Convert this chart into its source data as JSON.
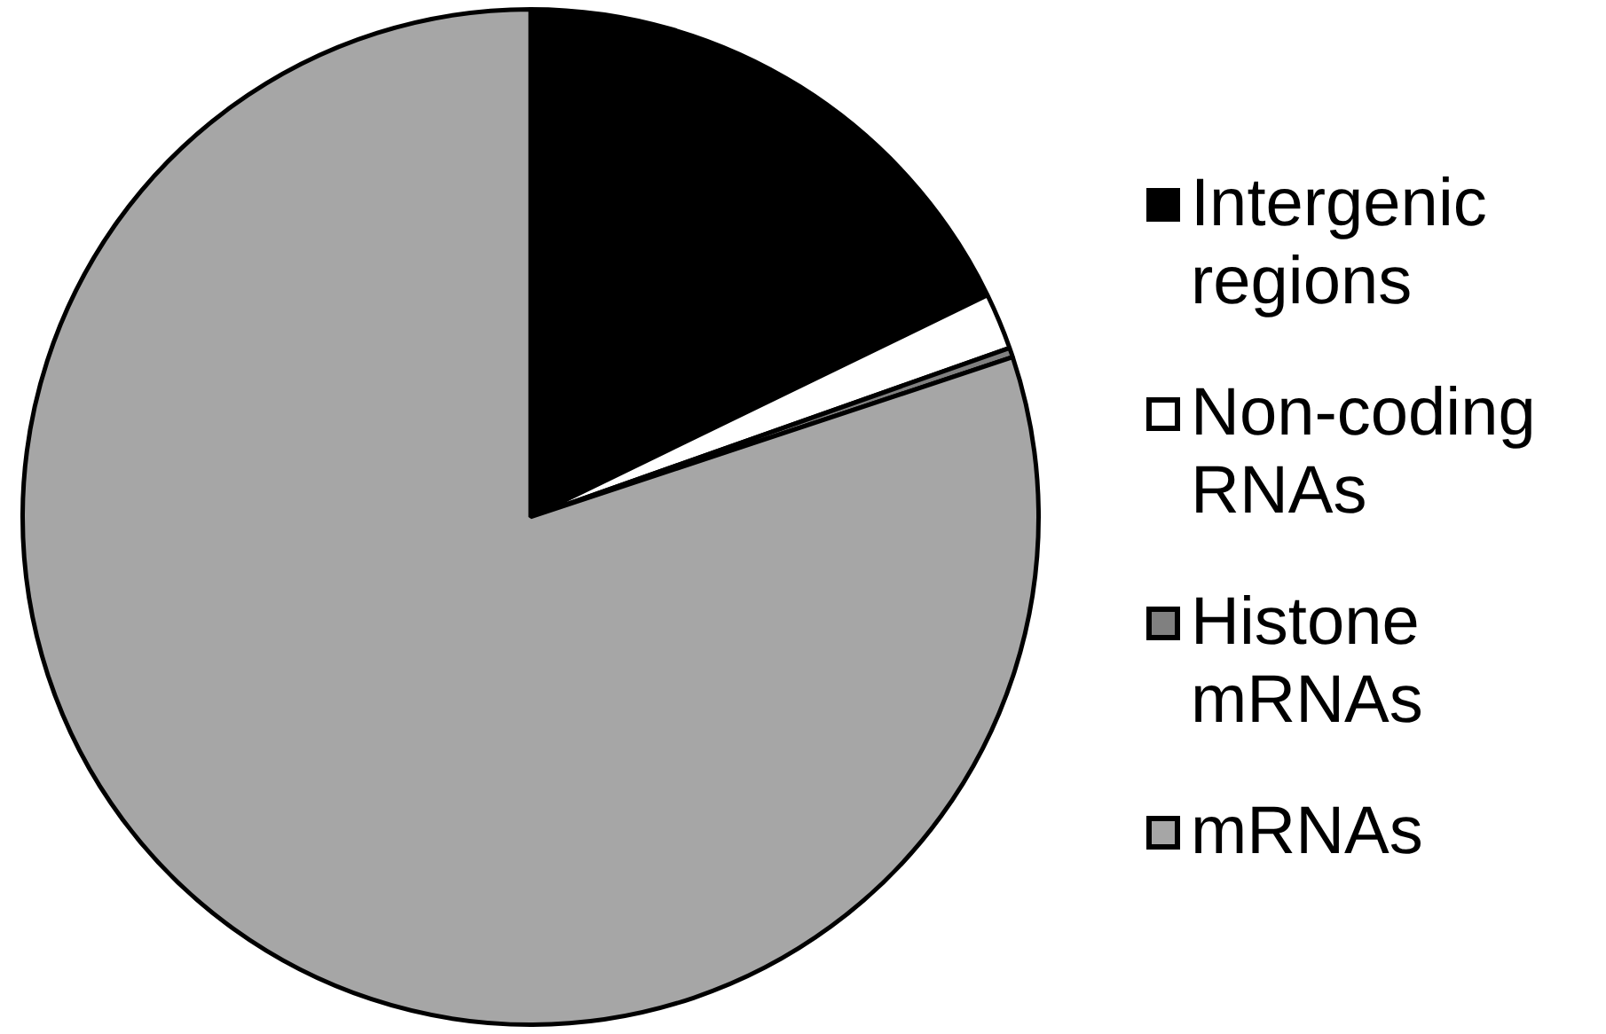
{
  "chart_data": {
    "type": "pie",
    "categories": [
      "Intergenic regions",
      "Non-coding RNAs",
      "Histone mRNAs",
      "mRNAs"
    ],
    "values": [
      17.8,
      1.8,
      0.3,
      80.1
    ],
    "colors": [
      "#000000",
      "#ffffff",
      "#808080",
      "#a6a6a6"
    ],
    "legend": "right"
  }
}
